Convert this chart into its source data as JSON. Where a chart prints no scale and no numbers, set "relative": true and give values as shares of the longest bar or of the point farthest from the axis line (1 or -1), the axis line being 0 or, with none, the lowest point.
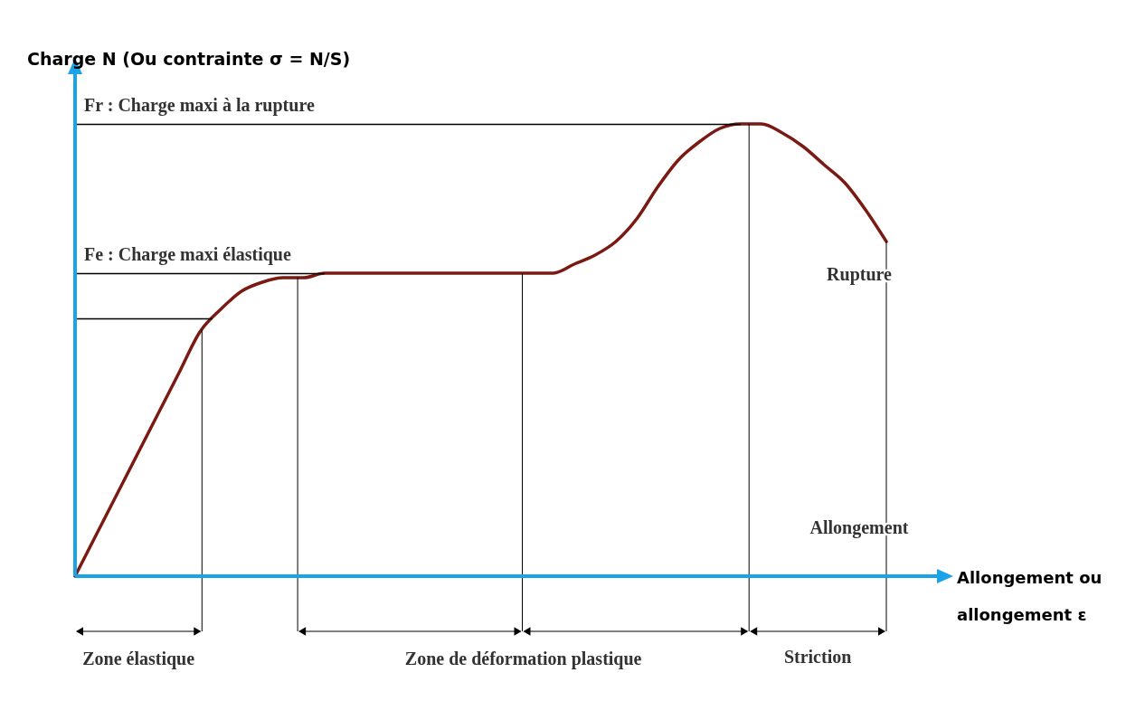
{
  "chart_data": {
    "type": "line",
    "relative": true,
    "ylabel": "Charge N (Ou contrainte  σ = N/S)",
    "xlabel": "Allongement ou allongement ε",
    "categories": [
      null,
      null,
      null,
      null,
      null,
      null,
      null,
      null,
      null,
      null,
      null,
      null,
      null,
      null,
      null,
      null,
      null,
      null,
      null,
      null,
      null,
      null,
      null,
      null,
      null,
      null,
      null,
      null,
      null,
      null,
      null,
      null,
      null,
      null,
      null,
      null,
      null,
      null,
      null,
      null
    ],
    "series": [
      {
        "color": "#7a1a12",
        "values": [
          0,
          0.09,
          0.18,
          0.27,
          0.36,
          0.45,
          0.54,
          0.59,
          0.63,
          0.65,
          0.66,
          0.66,
          0.67,
          0.67,
          0.67,
          0.67,
          0.67,
          0.67,
          0.67,
          0.67,
          0.67,
          0.67,
          0.67,
          0.67,
          0.69,
          0.71,
          0.74,
          0.79,
          0.86,
          0.92,
          0.96,
          0.99,
          1,
          1,
          0.98,
          0.95,
          0.91,
          0.87,
          0.81,
          0.74
        ]
      }
    ],
    "ref_lines": [
      {
        "axis": "y",
        "value": 1,
        "label": "Fr : Charge maxi à la rupture"
      },
      {
        "axis": "y",
        "value": 0.67,
        "label": "Fe : Charge maxi élastique"
      },
      {
        "axis": "y",
        "value": 0.57
      }
    ],
    "annotations": [
      "Rupture",
      "Allongement",
      "Zone élastique",
      "Zone de déformation plastique",
      "Striction"
    ],
    "legend": false,
    "marker": "none",
    "line_style": "solid"
  }
}
